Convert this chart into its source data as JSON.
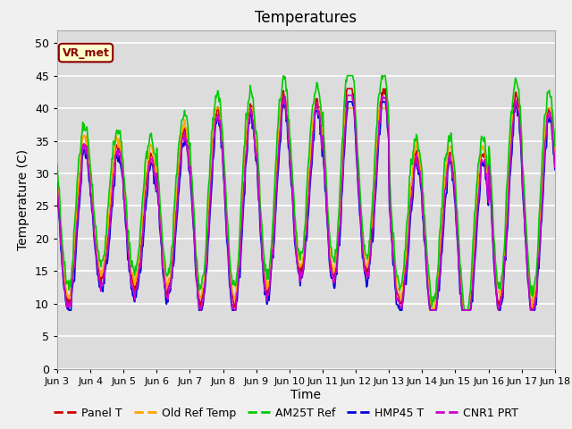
{
  "title": "Temperatures",
  "xlabel": "Time",
  "ylabel": "Temperature (C)",
  "ylim": [
    0,
    52
  ],
  "background_color": "#dcdcdc",
  "grid_color": "#ffffff",
  "series_colors": {
    "Panel T": "#cc0000",
    "Old Ref Temp": "#ffa500",
    "AM25T Ref": "#00cc00",
    "HMP45 T": "#0000dd",
    "CNR1 PRT": "#cc00cc"
  },
  "annotation_text": "VR_met",
  "annotation_bg": "#ffffcc",
  "annotation_border": "#8b0000",
  "tick_labels": [
    "Jun 3",
    "Jun 4",
    "Jun 5",
    "Jun 6",
    "Jun 7",
    "Jun 8",
    "Jun 9",
    "Jun 10",
    "Jun 11",
    "Jun 12",
    "Jun 13",
    "Jun 14",
    "Jun 15",
    "Jun 16",
    "Jun 17",
    "Jun 18"
  ],
  "yticks": [
    0,
    5,
    10,
    15,
    20,
    25,
    30,
    35,
    40,
    45,
    50
  ],
  "total_days": 15
}
